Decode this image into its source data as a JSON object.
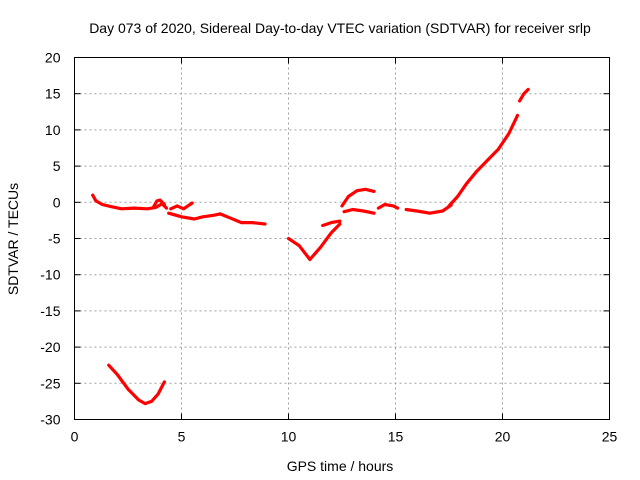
{
  "chart_data": {
    "type": "scatter",
    "title": "Day 073 of 2020, Sidereal Day-to-day VTEC variation (SDTVAR) for receiver srlp",
    "xlabel": "GPS time / hours",
    "ylabel": "SDTVAR / TECUs",
    "xlim": [
      0,
      25
    ],
    "ylim": [
      -30,
      20
    ],
    "x_ticks": [
      0,
      5,
      10,
      15,
      20,
      25
    ],
    "y_ticks": [
      -30,
      -25,
      -20,
      -15,
      -10,
      -5,
      0,
      5,
      10,
      15,
      20
    ],
    "grid": true,
    "color": "#ff0000",
    "series": [
      {
        "name": "arc-1",
        "x": [
          0.85,
          1.0,
          1.3,
          1.7,
          2.2,
          2.8,
          3.4,
          3.8,
          4.1,
          4.3
        ],
        "y": [
          1.0,
          0.2,
          -0.3,
          -0.6,
          -0.9,
          -0.8,
          -0.9,
          -0.7,
          -0.2,
          -0.8
        ]
      },
      {
        "name": "arc-2",
        "x": [
          3.7,
          3.85,
          4.0,
          4.2
        ],
        "y": [
          -0.6,
          0.2,
          0.3,
          -0.3
        ]
      },
      {
        "name": "arc-3",
        "x": [
          4.5,
          4.8,
          5.1,
          5.5
        ],
        "y": [
          -0.9,
          -0.5,
          -0.9,
          -0.1
        ]
      },
      {
        "name": "arc-4",
        "x": [
          4.4,
          5.0,
          5.6,
          6.0,
          6.5,
          6.8
        ],
        "y": [
          -1.5,
          -2.0,
          -2.3,
          -2.0,
          -1.8,
          -1.6
        ]
      },
      {
        "name": "arc-5",
        "x": [
          6.8,
          7.3,
          7.8,
          8.3,
          8.9
        ],
        "y": [
          -1.6,
          -2.2,
          -2.8,
          -2.8,
          -3.0
        ]
      },
      {
        "name": "arc-6",
        "x": [
          1.6,
          2.0,
          2.5,
          3.0,
          3.3,
          3.6,
          3.9,
          4.2
        ],
        "y": [
          -22.5,
          -23.8,
          -25.8,
          -27.3,
          -27.8,
          -27.5,
          -26.5,
          -24.8
        ]
      },
      {
        "name": "arc-7",
        "x": [
          10.0,
          10.5,
          11.0,
          11.5,
          12.0,
          12.4
        ],
        "y": [
          -5.0,
          -6.0,
          -7.9,
          -6.2,
          -4.2,
          -3.0
        ]
      },
      {
        "name": "arc-8",
        "x": [
          11.6,
          12.0,
          12.4
        ],
        "y": [
          -3.2,
          -2.8,
          -2.6
        ]
      },
      {
        "name": "arc-9",
        "x": [
          12.5,
          12.8,
          13.2,
          13.6,
          14.0
        ],
        "y": [
          -0.5,
          0.8,
          1.6,
          1.8,
          1.5
        ]
      },
      {
        "name": "arc-10",
        "x": [
          12.6,
          13.0,
          13.5,
          14.0
        ],
        "y": [
          -1.3,
          -1.0,
          -1.2,
          -1.5
        ]
      },
      {
        "name": "arc-11",
        "x": [
          14.2,
          14.5,
          14.9,
          15.1
        ],
        "y": [
          -0.8,
          -0.3,
          -0.5,
          -0.8
        ]
      },
      {
        "name": "arc-12",
        "x": [
          15.5,
          16.0,
          16.6,
          17.2,
          17.6
        ],
        "y": [
          -1.0,
          -1.2,
          -1.5,
          -1.2,
          -0.4
        ]
      },
      {
        "name": "arc-13",
        "x": [
          17.5,
          17.9,
          18.3,
          18.8,
          19.3,
          19.8,
          20.3,
          20.7
        ],
        "y": [
          -0.5,
          0.8,
          2.5,
          4.3,
          5.8,
          7.3,
          9.5,
          12.0
        ]
      },
      {
        "name": "arc-14",
        "x": [
          20.8,
          21.0,
          21.2
        ],
        "y": [
          14.0,
          15.0,
          15.6
        ]
      }
    ]
  }
}
